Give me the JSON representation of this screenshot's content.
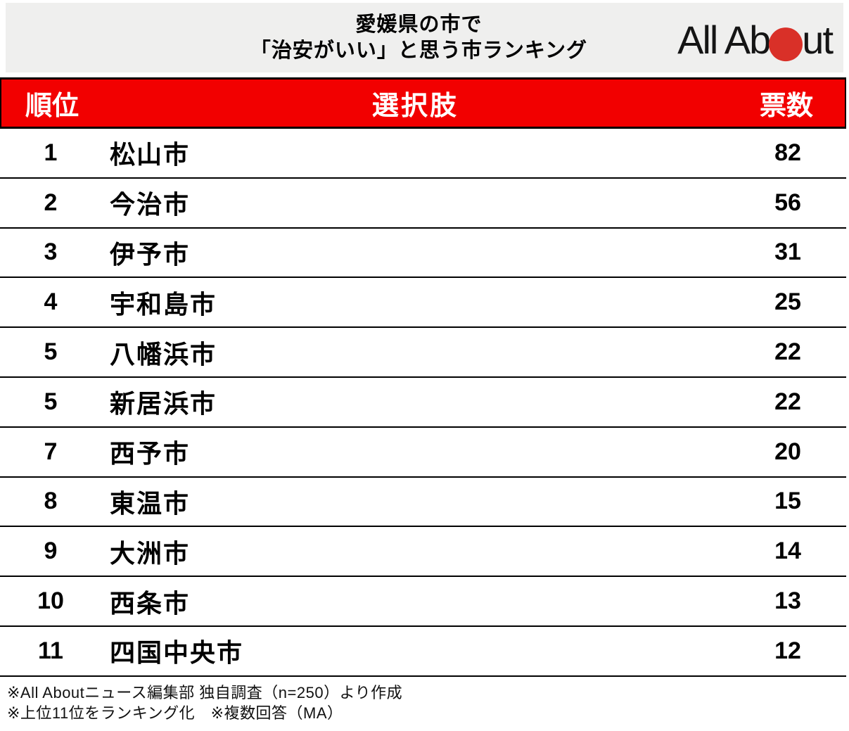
{
  "title": {
    "line1": "愛媛県の市で",
    "line2": "「治安がいい」と思う市ランキング"
  },
  "logo": {
    "text_before_dot": "All Ab",
    "text_after_dot": "ut",
    "dot_icon": "red-circle-icon"
  },
  "colors": {
    "header_red": "#f20000",
    "logo_red": "#d93028",
    "banner_gray": "#efefee"
  },
  "table": {
    "headers": {
      "rank": "順位",
      "choice": "選択肢",
      "votes": "票数"
    },
    "rows": [
      {
        "rank": "1",
        "city": "松山市",
        "votes": "82"
      },
      {
        "rank": "2",
        "city": "今治市",
        "votes": "56"
      },
      {
        "rank": "3",
        "city": "伊予市",
        "votes": "31"
      },
      {
        "rank": "4",
        "city": "宇和島市",
        "votes": "25"
      },
      {
        "rank": "5",
        "city": "八幡浜市",
        "votes": "22"
      },
      {
        "rank": "5",
        "city": "新居浜市",
        "votes": "22"
      },
      {
        "rank": "7",
        "city": "西予市",
        "votes": "20"
      },
      {
        "rank": "8",
        "city": "東温市",
        "votes": "15"
      },
      {
        "rank": "9",
        "city": "大洲市",
        "votes": "14"
      },
      {
        "rank": "10",
        "city": "西条市",
        "votes": "13"
      },
      {
        "rank": "11",
        "city": "四国中央市",
        "votes": "12"
      }
    ]
  },
  "footnotes": {
    "line1": "※All Aboutニュース編集部 独自調査（n=250）より作成",
    "line2": "※上位11位をランキング化　※複数回答（MA）"
  },
  "chart_data": {
    "type": "table",
    "title": "愛媛県の市で「治安がいい」と思う市ランキング",
    "columns": [
      "順位",
      "選択肢",
      "票数"
    ],
    "rows": [
      [
        1,
        "松山市",
        82
      ],
      [
        2,
        "今治市",
        56
      ],
      [
        3,
        "伊予市",
        31
      ],
      [
        4,
        "宇和島市",
        25
      ],
      [
        5,
        "八幡浜市",
        22
      ],
      [
        5,
        "新居浜市",
        22
      ],
      [
        7,
        "西予市",
        20
      ],
      [
        8,
        "東温市",
        15
      ],
      [
        9,
        "大洲市",
        14
      ],
      [
        10,
        "西条市",
        13
      ],
      [
        11,
        "四国中央市",
        12
      ]
    ],
    "notes": [
      "※All Aboutニュース編集部 独自調査（n=250）より作成",
      "※上位11位をランキング化　※複数回答（MA）"
    ],
    "source": "All About"
  }
}
